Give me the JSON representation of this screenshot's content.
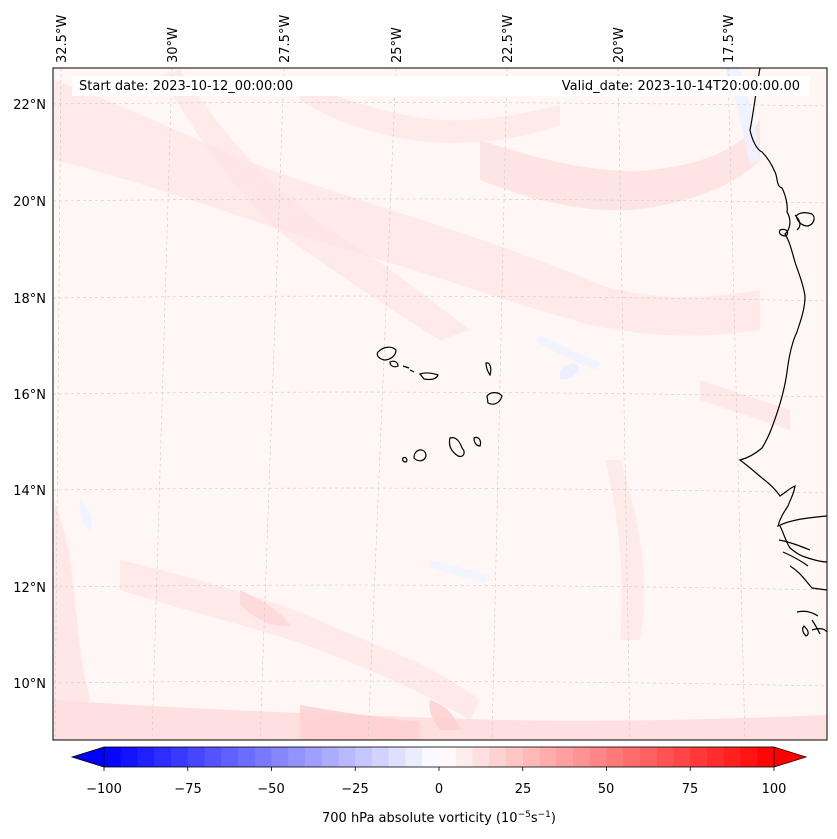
{
  "header": {
    "start_date": "Start date: 2023-10-12_00:00:00",
    "valid_date": "Valid_date: 2023-10-14T20:00:00.00"
  },
  "map": {
    "longitude_labels": [
      "32.5°W",
      "30°W",
      "27.5°W",
      "25°W",
      "22.5°W",
      "20°W",
      "17.5°W"
    ],
    "latitude_labels": [
      "22°N",
      "20°N",
      "18°N",
      "16°N",
      "14°N",
      "12°N",
      "10°N"
    ]
  },
  "colorbar": {
    "label": "700 hPa absolute vorticity (10",
    "label_exp1": "−5",
    "label_mid": "s",
    "label_exp2": "−1",
    "label_end": ")",
    "tick_labels": [
      "−100",
      "−75",
      "−50",
      "−25",
      "0",
      "25",
      "50",
      "75",
      "100"
    ],
    "min": -100,
    "max": 100,
    "colors": {
      "low": "#0000ff",
      "mid": "#ffffff",
      "high": "#ff0000"
    }
  }
}
